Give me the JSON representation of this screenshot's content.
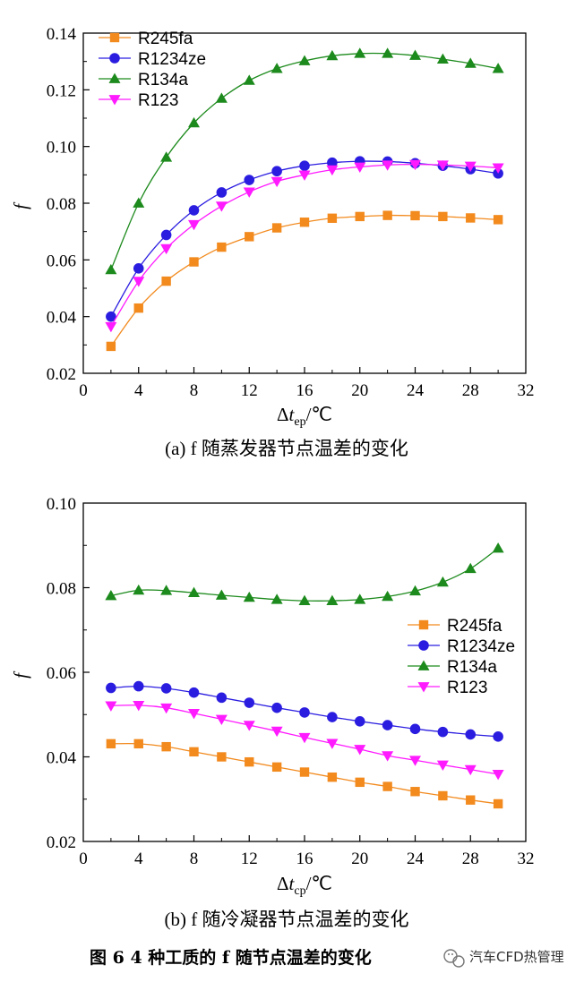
{
  "figure_title": "图 6   4 种工质的 f 随节点温差的变化",
  "watermark": "汽车CFD热管理",
  "chart_data": [
    {
      "type": "line",
      "panel_caption": "(a)  f 随蒸发器节点温差的变化",
      "xlabel": "Δt",
      "xlabel_sub": "ep",
      "xlabel_unit": "/℃",
      "ylabel": "f",
      "xlim": [
        0,
        32
      ],
      "ylim": [
        0.02,
        0.14
      ],
      "x_ticks": [
        "0",
        "4",
        "8",
        "12",
        "16",
        "20",
        "24",
        "28",
        "32"
      ],
      "y_ticks": [
        "0.02",
        "0.04",
        "0.06",
        "0.08",
        "0.10",
        "0.12",
        "0.14"
      ],
      "legend_position": "top-left",
      "x": [
        2,
        4,
        6,
        8,
        10,
        12,
        14,
        16,
        18,
        20,
        22,
        24,
        26,
        28,
        30
      ],
      "series": [
        {
          "name": "R245fa",
          "color": "#f28a1e",
          "marker": "square",
          "values": [
            0.0295,
            0.043,
            0.0525,
            0.0593,
            0.0645,
            0.0682,
            0.0713,
            0.0733,
            0.0747,
            0.0753,
            0.0757,
            0.0756,
            0.0753,
            0.0748,
            0.0742
          ]
        },
        {
          "name": "R1234ze",
          "color": "#2b1de0",
          "marker": "circle",
          "values": [
            0.04,
            0.057,
            0.0688,
            0.0775,
            0.0838,
            0.0882,
            0.0913,
            0.0932,
            0.0943,
            0.0948,
            0.0947,
            0.0941,
            0.0932,
            0.092,
            0.0905
          ]
        },
        {
          "name": "R134a",
          "color": "#1c8a1c",
          "marker": "triangle-up",
          "values": [
            0.0565,
            0.08,
            0.0962,
            0.1083,
            0.117,
            0.1233,
            0.1275,
            0.1302,
            0.132,
            0.1328,
            0.1328,
            0.1321,
            0.1308,
            0.1293,
            0.1275
          ]
        },
        {
          "name": "R123",
          "color": "#ff1aff",
          "marker": "triangle-down",
          "values": [
            0.0365,
            0.0525,
            0.064,
            0.0725,
            0.079,
            0.084,
            0.0877,
            0.09,
            0.0918,
            0.0928,
            0.0935,
            0.0937,
            0.0935,
            0.0931,
            0.0925
          ]
        }
      ]
    },
    {
      "type": "line",
      "panel_caption": "(b)  f 随冷凝器节点温差的变化",
      "xlabel": "Δt",
      "xlabel_sub": "cp",
      "xlabel_unit": "/℃",
      "ylabel": "f",
      "xlim": [
        0,
        32
      ],
      "ylim": [
        0.02,
        0.1
      ],
      "x_ticks": [
        "0",
        "4",
        "8",
        "12",
        "16",
        "20",
        "24",
        "28",
        "32"
      ],
      "y_ticks": [
        "0.02",
        "0.04",
        "0.06",
        "0.08",
        "0.10"
      ],
      "legend_position": "middle-right",
      "x": [
        2,
        4,
        6,
        8,
        10,
        12,
        14,
        16,
        18,
        20,
        22,
        24,
        26,
        28,
        30
      ],
      "series": [
        {
          "name": "R245fa",
          "color": "#f28a1e",
          "marker": "square",
          "values": [
            0.0431,
            0.0431,
            0.0424,
            0.0412,
            0.04,
            0.0388,
            0.0376,
            0.0364,
            0.0352,
            0.034,
            0.033,
            0.0318,
            0.0308,
            0.0298,
            0.0289
          ]
        },
        {
          "name": "R1234ze",
          "color": "#2b1de0",
          "marker": "circle",
          "values": [
            0.0563,
            0.0567,
            0.0562,
            0.0552,
            0.054,
            0.0528,
            0.0516,
            0.0505,
            0.0494,
            0.0484,
            0.0475,
            0.0466,
            0.0459,
            0.0453,
            0.0448
          ]
        },
        {
          "name": "R134a",
          "color": "#1c8a1c",
          "marker": "triangle-up",
          "values": [
            0.0781,
            0.0794,
            0.0793,
            0.0788,
            0.0782,
            0.0777,
            0.0772,
            0.0769,
            0.0769,
            0.0772,
            0.0779,
            0.0792,
            0.0813,
            0.0845,
            0.0893
          ]
        },
        {
          "name": "R123",
          "color": "#ff1aff",
          "marker": "triangle-down",
          "values": [
            0.0521,
            0.0522,
            0.0516,
            0.0503,
            0.0489,
            0.0475,
            0.0461,
            0.0446,
            0.0432,
            0.0418,
            0.0403,
            0.0392,
            0.0381,
            0.037,
            0.0359
          ]
        }
      ]
    }
  ]
}
